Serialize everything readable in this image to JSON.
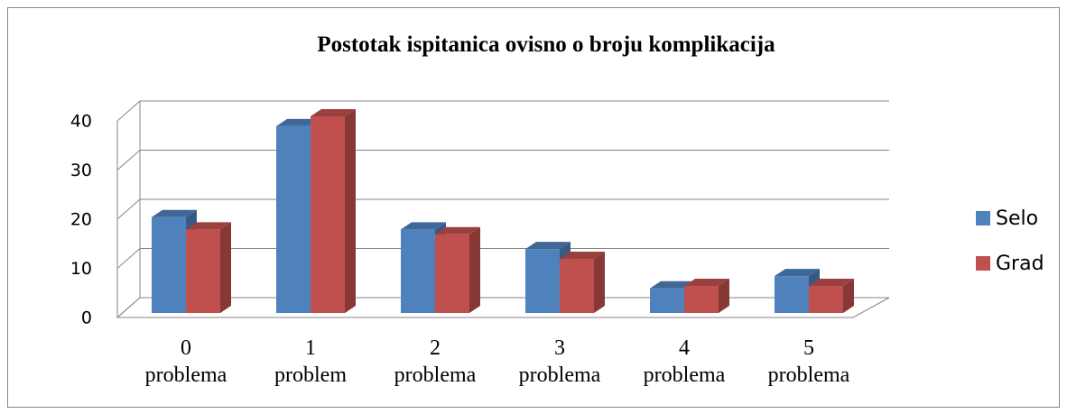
{
  "chart_data": {
    "type": "bar3d",
    "title": "Postotak ispitanica ovisno o broju komplikacija",
    "categories": [
      "0 problema",
      "1 problem",
      "2 problema",
      "3 problema",
      "4 problema",
      "5 problema"
    ],
    "series": [
      {
        "name": "Selo",
        "color": "#4f81bd",
        "values": [
          19.5,
          38,
          17,
          13,
          5,
          7.5
        ]
      },
      {
        "name": "Grad",
        "color": "#c0504d",
        "values": [
          17,
          40,
          16,
          11,
          5.5,
          5.5
        ]
      }
    ],
    "ylim": [
      0,
      40
    ],
    "yticks": [
      0,
      10,
      20,
      30,
      40
    ],
    "grid": true,
    "legend": "right"
  }
}
